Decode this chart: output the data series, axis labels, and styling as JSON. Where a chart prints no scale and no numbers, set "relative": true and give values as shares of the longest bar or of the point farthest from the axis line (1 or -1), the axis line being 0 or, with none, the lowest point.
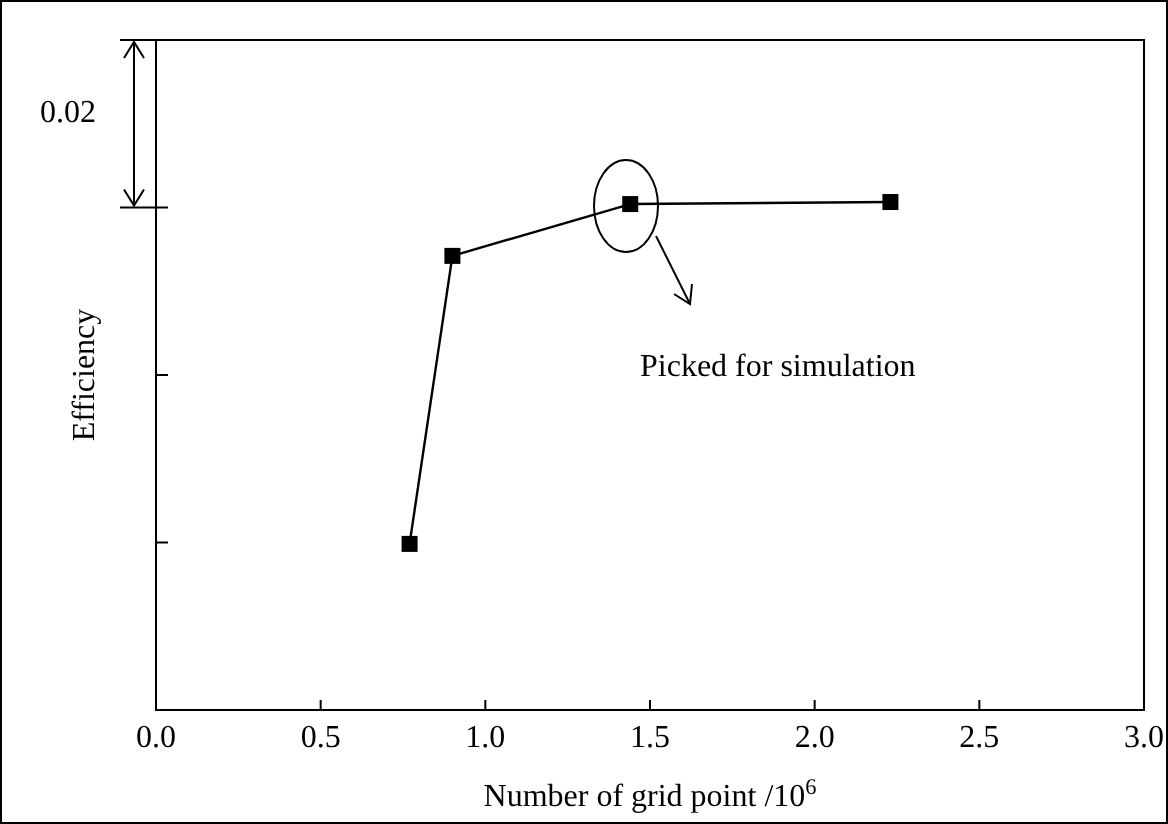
{
  "chart_data": {
    "type": "line",
    "relative": true,
    "xlabel": "Number of grid point /10$^{6}$",
    "ylabel": "Efficiency",
    "x": [
      0.77,
      0.9,
      1.44,
      2.23
    ],
    "series": [
      {
        "color": "#000000",
        "values": [
          0.327,
          0.894,
          0.996,
          1
        ]
      }
    ],
    "xlim": [
      0,
      3
    ],
    "xticks": [
      {
        "value": 0,
        "label": "0.0"
      },
      {
        "value": 0.5,
        "label": "0.5"
      },
      {
        "value": 1,
        "label": "1.0"
      },
      {
        "value": 1.5,
        "label": "1.5"
      },
      {
        "value": 2,
        "label": "2.0"
      },
      {
        "value": 2.5,
        "label": "2.5"
      },
      {
        "value": 3,
        "label": "3.0"
      }
    ],
    "annotations": [
      "0.02",
      "Picked for simulation"
    ],
    "marker": "square",
    "line_style": "solid",
    "grid": false,
    "legend": false
  }
}
